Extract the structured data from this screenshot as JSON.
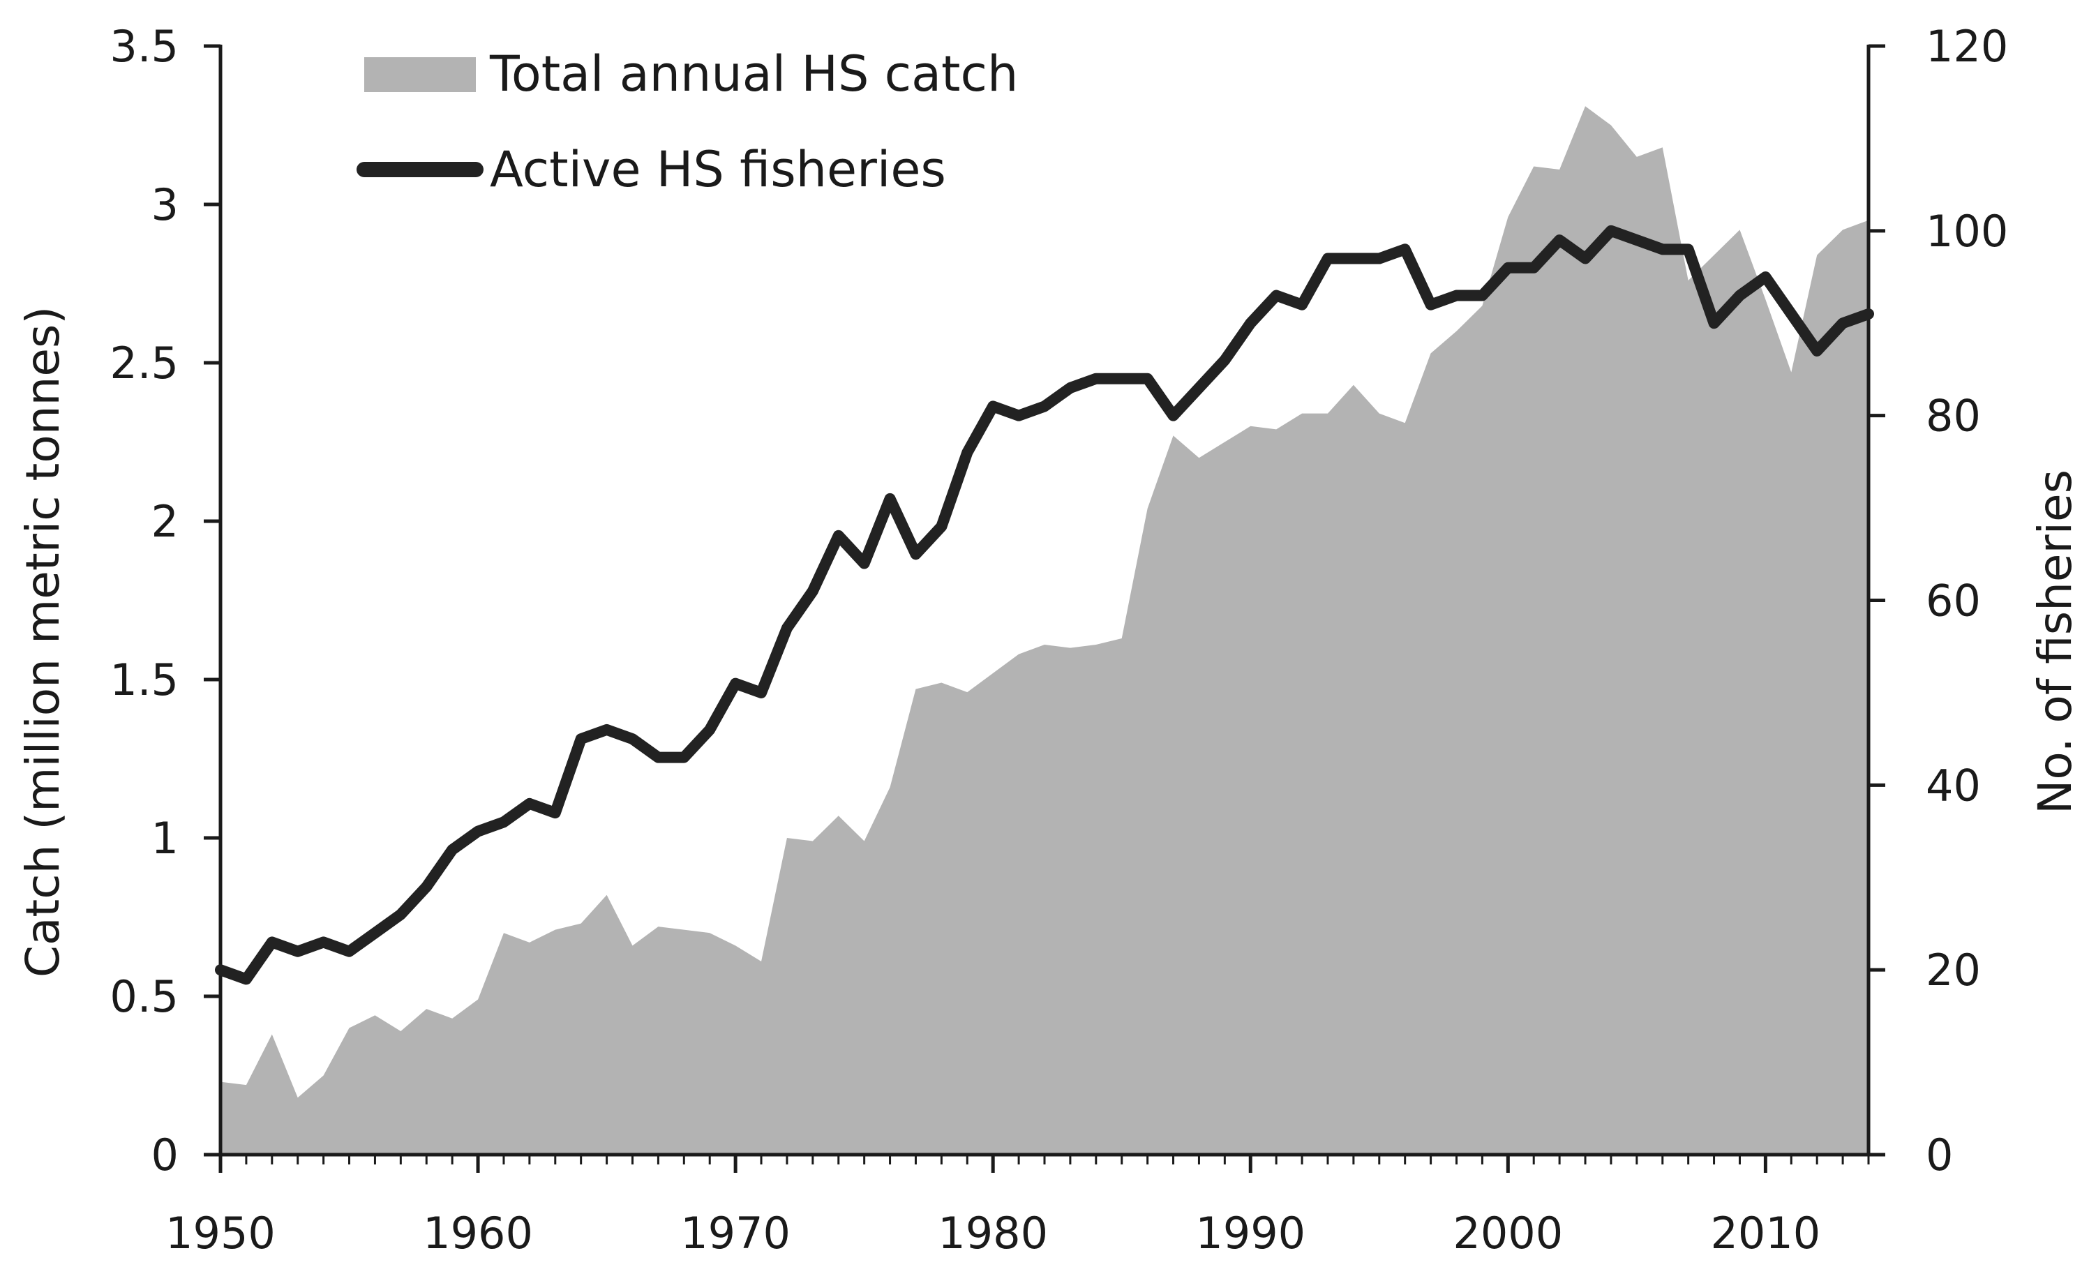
{
  "chart_data": {
    "type": "area",
    "xlabel": "",
    "ylabel": "Catch (million metric tonnes)",
    "y2label": "No. of fisheries",
    "xlim": [
      1950,
      2014
    ],
    "ylim": [
      0,
      3.5
    ],
    "y2lim": [
      0,
      120
    ],
    "x_ticks": [
      1950,
      1960,
      1970,
      1980,
      1990,
      2000,
      2010
    ],
    "y_ticks": [
      0,
      0.5,
      1,
      1.5,
      2,
      2.5,
      3,
      3.5
    ],
    "y_tick_labels": [
      "0",
      "0.5",
      "1",
      "1.5",
      "2",
      "2.5",
      "3",
      "3.5"
    ],
    "y2_ticks": [
      0,
      20,
      40,
      60,
      80,
      100,
      120
    ],
    "grid": false,
    "legend_position": "top-left",
    "x": [
      1950,
      1951,
      1952,
      1953,
      1954,
      1955,
      1956,
      1957,
      1958,
      1959,
      1960,
      1961,
      1962,
      1963,
      1964,
      1965,
      1966,
      1967,
      1968,
      1969,
      1970,
      1971,
      1972,
      1973,
      1974,
      1975,
      1976,
      1977,
      1978,
      1979,
      1980,
      1981,
      1982,
      1983,
      1984,
      1985,
      1986,
      1987,
      1988,
      1989,
      1990,
      1991,
      1992,
      1993,
      1994,
      1995,
      1996,
      1997,
      1998,
      1999,
      2000,
      2001,
      2002,
      2003,
      2004,
      2005,
      2006,
      2007,
      2008,
      2009,
      2010,
      2011,
      2012,
      2013,
      2014
    ],
    "series": [
      {
        "name": "Total annual HS catch",
        "type": "area",
        "axis": "left",
        "color": "#b3b3b3",
        "values": [
          0.23,
          0.22,
          0.38,
          0.18,
          0.25,
          0.4,
          0.44,
          0.39,
          0.46,
          0.43,
          0.49,
          0.7,
          0.67,
          0.71,
          0.73,
          0.82,
          0.66,
          0.72,
          0.71,
          0.7,
          0.66,
          0.61,
          1.0,
          0.99,
          1.07,
          0.99,
          1.16,
          1.47,
          1.49,
          1.46,
          1.52,
          1.58,
          1.61,
          1.6,
          1.61,
          1.63,
          2.04,
          2.27,
          2.2,
          2.25,
          2.3,
          2.29,
          2.34,
          2.34,
          2.43,
          2.34,
          2.31,
          2.53,
          2.6,
          2.68,
          2.96,
          3.12,
          3.11,
          3.31,
          3.25,
          3.15,
          3.18,
          2.76,
          2.84,
          2.92,
          2.7,
          2.47,
          2.84,
          2.92,
          2.95
        ]
      },
      {
        "name": "Active HS fisheries",
        "type": "line",
        "axis": "right",
        "color": "#222222",
        "values": [
          20,
          19,
          23,
          22,
          23,
          22,
          24,
          26,
          29,
          33,
          35,
          36,
          38,
          37,
          45,
          46,
          45,
          43,
          43,
          46,
          51,
          50,
          57,
          61,
          67,
          64,
          71,
          65,
          68,
          76,
          81,
          80,
          81,
          83,
          84,
          84,
          84,
          80,
          83,
          86,
          90,
          93,
          92,
          97,
          97,
          97,
          98,
          92,
          93,
          93,
          96,
          96,
          99,
          97,
          100,
          99,
          98,
          98,
          90,
          93,
          95,
          91,
          87,
          90,
          91
        ]
      }
    ]
  }
}
